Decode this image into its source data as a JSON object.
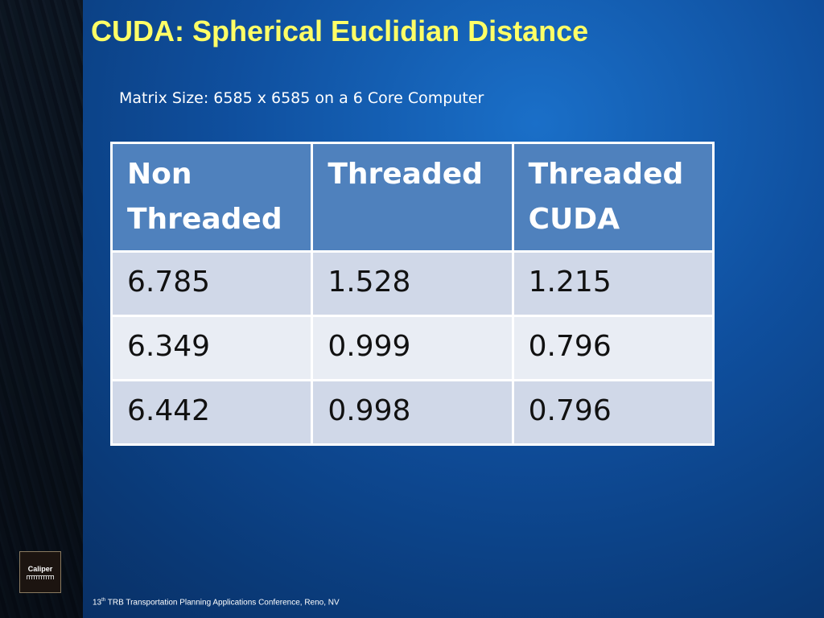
{
  "header": {
    "title": "CUDA: Spherical Euclidian Distance",
    "subtitle": "Matrix Size: 6585 x 6585 on a 6 Core Computer"
  },
  "table": {
    "columns": [
      "Non Threaded",
      "Threaded",
      "Threaded CUDA"
    ],
    "rows": [
      [
        "6.785",
        "1.528",
        "1.215"
      ],
      [
        "6.349",
        "0.999",
        "0.796"
      ],
      [
        "6.442",
        "0.998",
        "0.796"
      ]
    ]
  },
  "logo": {
    "text": "Caliper"
  },
  "footer": {
    "number": "13",
    "suffix": "th",
    "text": "TRB Transportation Planning Applications Conference, Reno, NV"
  }
}
